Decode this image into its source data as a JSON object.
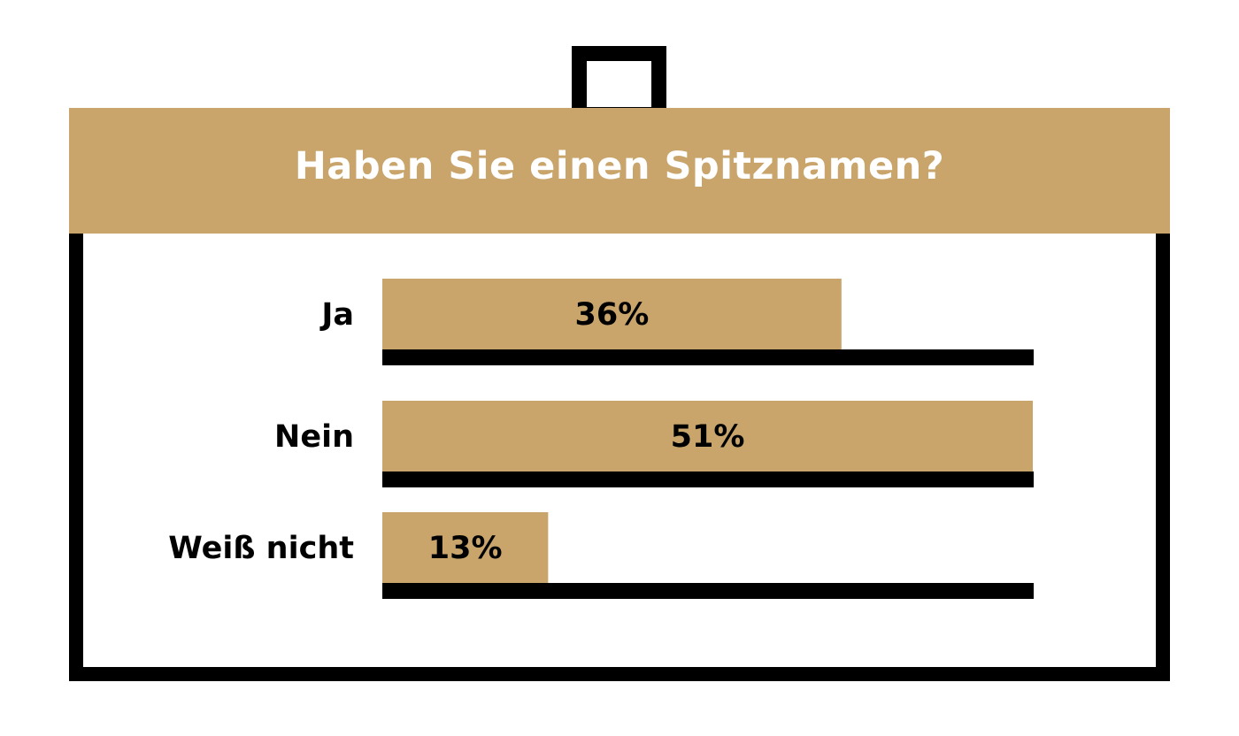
{
  "colors": {
    "accent": "#c9a56c",
    "frame": "#000000",
    "title_text": "#ffffff"
  },
  "chart_data": {
    "type": "bar",
    "orientation": "horizontal",
    "title": "Haben Sie einen Spitznamen?",
    "categories": [
      "Ja",
      "Nein",
      "Weiß nicht"
    ],
    "values": [
      36,
      51,
      13
    ],
    "value_labels": [
      "36%",
      "51%",
      "13%"
    ],
    "xlim": [
      0,
      51
    ],
    "unit": "%",
    "grid": false,
    "legend": "none"
  }
}
